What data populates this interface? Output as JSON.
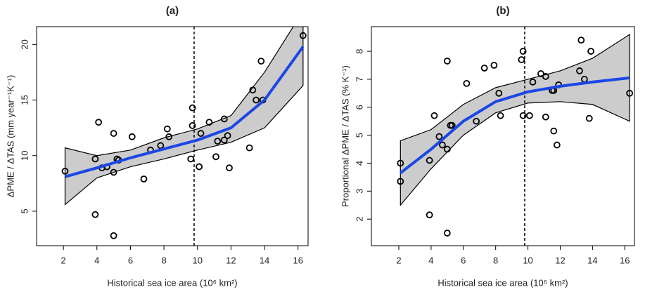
{
  "chart_data": [
    {
      "type": "scatter",
      "title": "(a)",
      "x_label": "Historical sea ice area (10⁶ km²)",
      "y_label": "ΔPME / ΔTAS (mm year⁻¹K⁻¹)",
      "xlim": [
        0.4,
        16.6
      ],
      "xticks": [
        2,
        4,
        6,
        8,
        10,
        12,
        14,
        16
      ],
      "ylim": [
        1.9,
        21.6
      ],
      "yticks": [
        5,
        10,
        15,
        20
      ],
      "vline": 9.8,
      "point_color": "#000000",
      "line_color": "#1a47e6",
      "band_color": "#cccccc",
      "points": {
        "x": [
          2.1,
          3.9,
          3.9,
          4.1,
          4.3,
          4.6,
          5.0,
          5.0,
          5.0,
          5.2,
          5.3,
          6.1,
          6.8,
          7.2,
          7.8,
          8.2,
          8.3,
          9.6,
          9.7,
          9.7,
          10.1,
          10.2,
          10.7,
          11.1,
          11.2,
          11.6,
          11.6,
          11.8,
          11.9,
          13.1,
          13.3,
          13.5,
          13.8,
          13.9,
          16.3
        ],
        "y": [
          8.6,
          9.7,
          4.7,
          13.0,
          8.9,
          9.0,
          12.0,
          8.5,
          2.8,
          9.7,
          9.6,
          11.7,
          7.9,
          10.5,
          10.9,
          12.4,
          11.7,
          9.7,
          14.3,
          12.7,
          9.0,
          12.0,
          13.0,
          9.9,
          11.3,
          13.3,
          11.4,
          11.8,
          8.9,
          10.7,
          15.9,
          15.0,
          18.5,
          15.0,
          20.8
        ]
      },
      "fit": {
        "x": [
          2.1,
          4,
          6,
          8,
          10,
          12,
          14,
          16.3
        ],
        "y": [
          8.1,
          8.9,
          9.8,
          10.6,
          11.4,
          12.5,
          15.0,
          19.8
        ],
        "lower": [
          5.6,
          8.0,
          9.0,
          9.7,
          10.5,
          11.2,
          12.5,
          16.3
        ],
        "upper": [
          10.7,
          10.0,
          10.5,
          11.6,
          12.4,
          13.6,
          17.5,
          23.0
        ]
      }
    },
    {
      "type": "scatter",
      "title": "(b)",
      "x_label": "Historical sea ice area (10⁶ km²)",
      "y_label": "Proportional ΔPME / ΔTAS (% K⁻¹)",
      "xlim": [
        0.3,
        16.6
      ],
      "xticks": [
        2,
        4,
        6,
        8,
        10,
        12,
        14,
        16
      ],
      "ylim": [
        1.05,
        8.88
      ],
      "yticks": [
        2,
        3,
        4,
        5,
        6,
        7,
        8
      ],
      "vline": 9.8,
      "point_color": "#000000",
      "line_color": "#1a47e6",
      "band_color": "#cccccc",
      "points": {
        "x": [
          2.1,
          2.1,
          3.9,
          3.9,
          4.2,
          4.5,
          4.7,
          5.0,
          5.0,
          5.0,
          5.2,
          5.3,
          6.2,
          6.8,
          7.3,
          7.9,
          8.2,
          8.3,
          9.6,
          9.7,
          9.7,
          10.1,
          10.3,
          10.8,
          11.1,
          11.1,
          11.5,
          11.6,
          11.6,
          11.8,
          11.9,
          13.2,
          13.3,
          13.5,
          13.8,
          13.9,
          16.3
        ],
        "y": [
          4.0,
          3.35,
          2.15,
          4.1,
          5.7,
          4.95,
          4.65,
          7.65,
          4.5,
          1.5,
          5.35,
          5.35,
          6.85,
          5.5,
          7.4,
          7.5,
          6.5,
          5.7,
          7.7,
          5.7,
          8.0,
          5.7,
          6.9,
          7.2,
          7.1,
          5.65,
          6.6,
          6.6,
          5.15,
          4.65,
          6.8,
          7.3,
          8.4,
          7.0,
          5.6,
          8.0,
          6.5
        ]
      },
      "fit": {
        "x": [
          2.1,
          4,
          6,
          8,
          10,
          12,
          14,
          16.3
        ],
        "y": [
          3.65,
          4.5,
          5.5,
          6.2,
          6.55,
          6.75,
          6.9,
          7.05
        ],
        "lower": [
          2.5,
          3.8,
          5.0,
          5.8,
          6.15,
          6.2,
          6.1,
          5.5
        ],
        "upper": [
          4.8,
          5.2,
          6.1,
          6.7,
          7.0,
          7.3,
          7.75,
          8.6
        ]
      }
    }
  ]
}
